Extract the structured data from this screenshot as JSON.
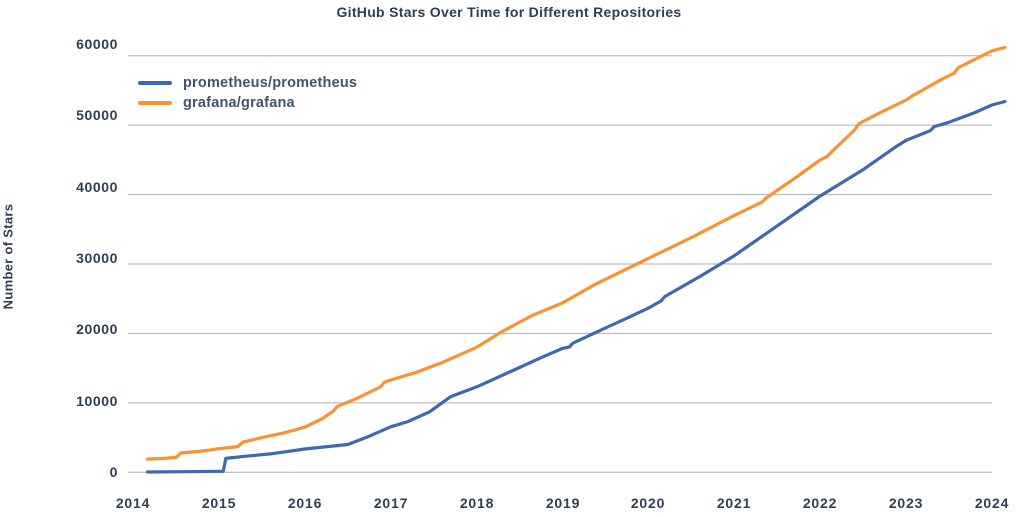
{
  "chart_data": {
    "type": "line",
    "title": "GitHub Stars Over Time for Different Repositories",
    "xlabel": "",
    "ylabel": "Number of Stars",
    "x_ticks": [
      2014,
      2015,
      2016,
      2017,
      2018,
      2019,
      2020,
      2021,
      2022,
      2023,
      2024
    ],
    "y_ticks": [
      0,
      10000,
      20000,
      30000,
      40000,
      50000,
      60000
    ],
    "xlim": [
      2013.94,
      2024.0
    ],
    "ylim": [
      0,
      60000
    ],
    "grid": "horizontal-only",
    "legend_position": "upper-left",
    "colors": {
      "background": "#ffffff",
      "grid": "#b0b0b0",
      "text": "#2f3e54",
      "legend_text": "#42536e"
    },
    "series": [
      {
        "name": "prometheus/prometheus",
        "color": "#3c69b0",
        "points": [
          [
            2014.17,
            50
          ],
          [
            2014.6,
            80
          ],
          [
            2015.0,
            140
          ],
          [
            2015.05,
            150
          ],
          [
            2015.08,
            2000
          ],
          [
            2015.3,
            2300
          ],
          [
            2015.6,
            2650
          ],
          [
            2016.0,
            3350
          ],
          [
            2016.5,
            4000
          ],
          [
            2016.75,
            5200
          ],
          [
            2017.0,
            6550
          ],
          [
            2017.2,
            7300
          ],
          [
            2017.45,
            8700
          ],
          [
            2017.7,
            10900
          ],
          [
            2018.0,
            12300
          ],
          [
            2018.25,
            13700
          ],
          [
            2018.5,
            15100
          ],
          [
            2018.75,
            16500
          ],
          [
            2019.0,
            17850
          ],
          [
            2019.08,
            18050
          ],
          [
            2019.12,
            18600
          ],
          [
            2019.5,
            20800
          ],
          [
            2019.75,
            22200
          ],
          [
            2020.0,
            23650
          ],
          [
            2020.15,
            24700
          ],
          [
            2020.19,
            25300
          ],
          [
            2020.6,
            28200
          ],
          [
            2021.0,
            31200
          ],
          [
            2021.5,
            35500
          ],
          [
            2022.0,
            39800
          ],
          [
            2022.5,
            43600
          ],
          [
            2022.87,
            46800
          ],
          [
            2023.0,
            47800
          ],
          [
            2023.28,
            49200
          ],
          [
            2023.33,
            49800
          ],
          [
            2023.47,
            50300
          ],
          [
            2023.8,
            51800
          ],
          [
            2024.0,
            52900
          ],
          [
            2024.15,
            53400
          ]
        ]
      },
      {
        "name": "grafana/grafana",
        "color": "#fa9231",
        "points": [
          [
            2014.17,
            1900
          ],
          [
            2014.35,
            2000
          ],
          [
            2014.5,
            2150
          ],
          [
            2014.56,
            2800
          ],
          [
            2014.8,
            3050
          ],
          [
            2015.0,
            3400
          ],
          [
            2015.22,
            3700
          ],
          [
            2015.28,
            4350
          ],
          [
            2015.5,
            5000
          ],
          [
            2015.75,
            5650
          ],
          [
            2016.0,
            6500
          ],
          [
            2016.2,
            7700
          ],
          [
            2016.33,
            8800
          ],
          [
            2016.38,
            9500
          ],
          [
            2016.6,
            10600
          ],
          [
            2016.88,
            12300
          ],
          [
            2016.93,
            13000
          ],
          [
            2017.0,
            13300
          ],
          [
            2017.3,
            14400
          ],
          [
            2017.6,
            15800
          ],
          [
            2018.0,
            18000
          ],
          [
            2018.3,
            20300
          ],
          [
            2018.65,
            22600
          ],
          [
            2019.0,
            24400
          ],
          [
            2019.4,
            27200
          ],
          [
            2019.75,
            29300
          ],
          [
            2020.0,
            30800
          ],
          [
            2020.5,
            33800
          ],
          [
            2021.0,
            37000
          ],
          [
            2021.32,
            38900
          ],
          [
            2021.37,
            39500
          ],
          [
            2021.7,
            42300
          ],
          [
            2022.0,
            45000
          ],
          [
            2022.08,
            45500
          ],
          [
            2022.12,
            46000
          ],
          [
            2022.4,
            49300
          ],
          [
            2022.45,
            50200
          ],
          [
            2022.7,
            51800
          ],
          [
            2023.0,
            53600
          ],
          [
            2023.07,
            54200
          ],
          [
            2023.4,
            56500
          ],
          [
            2023.56,
            57500
          ],
          [
            2023.61,
            58300
          ],
          [
            2024.0,
            60700
          ],
          [
            2024.15,
            61200
          ]
        ]
      }
    ]
  }
}
